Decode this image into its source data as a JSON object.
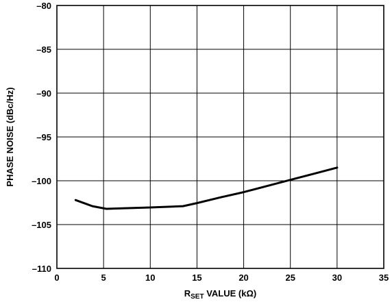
{
  "chart_data": {
    "type": "line",
    "title": "",
    "xlabel": {
      "main": "R",
      "sub": "SET",
      "rest": " VALUE (kΩ)"
    },
    "ylabel": "PHASE NOISE (dBc/Hz)",
    "xlim": [
      0,
      35
    ],
    "ylim": [
      -110,
      -80
    ],
    "xticks": [
      0,
      5,
      10,
      15,
      20,
      25,
      30,
      35
    ],
    "yticks": [
      -110,
      -105,
      -100,
      -95,
      -90,
      -85,
      -80
    ],
    "ytick_labels": [
      "–110",
      "–105",
      "–100",
      "–95",
      "–90",
      "–85",
      "–80"
    ],
    "grid": true,
    "legend": "none",
    "series": [
      {
        "color": "#000000",
        "x": [
          2,
          3.8,
          5.3,
          7,
          10,
          13.5,
          15,
          17.5,
          20,
          22.5,
          25,
          27.5,
          30
        ],
        "y": [
          -102.2,
          -102.9,
          -103.2,
          -103.15,
          -103.05,
          -102.9,
          -102.55,
          -101.9,
          -101.3,
          -100.6,
          -99.9,
          -99.2,
          -98.5
        ]
      }
    ]
  }
}
